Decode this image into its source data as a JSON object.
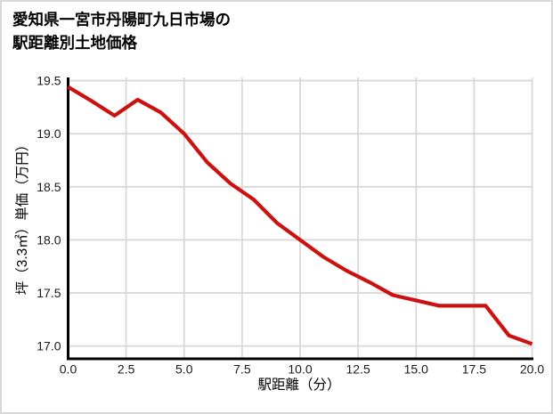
{
  "header": {
    "title_line1": "愛知県一宮市丹陽町九日市場の",
    "title_line2": "駅距離別土地価格"
  },
  "chart_data": {
    "type": "line",
    "title": "愛知県一宮市丹陽町九日市場の駅距離別土地価格",
    "xlabel": "駅距離（分）",
    "ylabel": "坪（3.3㎡）単価（万円）",
    "series": [
      {
        "name": "土地価格",
        "x": [
          0,
          1,
          2,
          3,
          4,
          5,
          6,
          7,
          8,
          9,
          10,
          11,
          12,
          13,
          14,
          15,
          16,
          17,
          18,
          19,
          20
        ],
        "y": [
          19.44,
          19.31,
          19.17,
          19.32,
          19.2,
          19.0,
          18.73,
          18.53,
          18.38,
          18.16,
          18.0,
          17.84,
          17.71,
          17.6,
          17.48,
          17.43,
          17.38,
          17.38,
          17.38,
          17.1,
          17.02
        ]
      }
    ],
    "xlim": [
      0,
      20
    ],
    "ylim": [
      16.88,
      19.53
    ],
    "xticks": [
      "0.0",
      "2.5",
      "5.0",
      "7.5",
      "10.0",
      "12.5",
      "15.0",
      "17.5",
      "20.0"
    ],
    "yticks": [
      "19.5",
      "19.0",
      "18.5",
      "18.0",
      "17.5",
      "17.0"
    ],
    "grid": true,
    "legend": "none"
  },
  "colors": {
    "line": "#cc1111",
    "grid": "#d9d9d9",
    "spine": "#000000",
    "tick_text": "#1a1a1a",
    "card_border": "#d8d8d8",
    "background": "#ffffff"
  }
}
